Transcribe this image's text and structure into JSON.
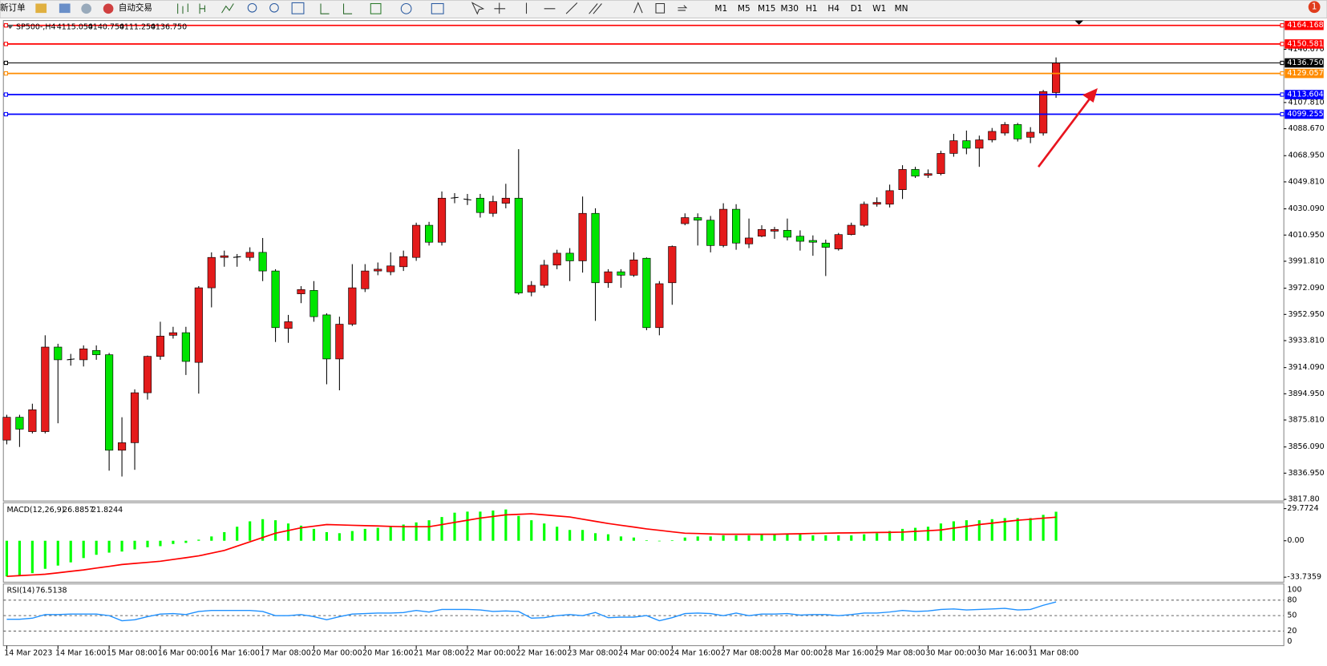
{
  "toolbar": {
    "new_order": "新订单",
    "auto_trading": "自动交易",
    "timeframes": [
      "M1",
      "M5",
      "M15",
      "M30",
      "H1",
      "H4",
      "D1",
      "W1",
      "MN"
    ],
    "notifications": 1
  },
  "chart": {
    "symbol": "SP500-,H4",
    "header_values": [
      {
        "value": 4115.05,
        "label": "4115.050"
      },
      {
        "value": 4140.75,
        "label": "4140.750"
      },
      {
        "value": 4111.25,
        "label": "4111.250"
      },
      {
        "value": 4136.75,
        "label": "4136.750"
      }
    ],
    "ylim": [
      3816.6,
      4167.1
    ],
    "yticks": [
      {
        "value": 4146.67,
        "label": "4146.670"
      },
      {
        "value": 4107.81,
        "label": "4107.810"
      },
      {
        "value": 4088.67,
        "label": "4088.670"
      },
      {
        "value": 4068.95,
        "label": "4068.950"
      },
      {
        "value": 4049.81,
        "label": "4049.810"
      },
      {
        "value": 4030.09,
        "label": "4030.090"
      },
      {
        "value": 4010.95,
        "label": "4010.950"
      },
      {
        "value": 3991.81,
        "label": "3991.810"
      },
      {
        "value": 3972.09,
        "label": "3972.090"
      },
      {
        "value": 3952.95,
        "label": "3952.950"
      },
      {
        "value": 3933.81,
        "label": "3933.810"
      },
      {
        "value": 3914.09,
        "label": "3914.090"
      },
      {
        "value": 3894.95,
        "label": "3894.950"
      },
      {
        "value": 3875.81,
        "label": "3875.810"
      },
      {
        "value": 3856.09,
        "label": "3856.090"
      },
      {
        "value": 3836.95,
        "label": "3836.950"
      },
      {
        "value": 3817.8,
        "label": "3817.80"
      }
    ],
    "levels": [
      {
        "value": 4164.168,
        "label": "4164.168",
        "color": "#ff0000"
      },
      {
        "value": 4150.581,
        "label": "4150.581",
        "color": "#ff0000"
      },
      {
        "value": 4136.75,
        "label": "4136.750",
        "color": "#000000"
      },
      {
        "value": 4129.057,
        "label": "4129.057",
        "color": "#ff8c00"
      },
      {
        "value": 4113.604,
        "label": "4113.604",
        "color": "#0000ff"
      },
      {
        "value": 4099.255,
        "label": "4099.255",
        "color": "#0000ff"
      }
    ],
    "up_color": "#e41b1b",
    "down_color": "#00e400",
    "candles": [
      [
        3861.1,
        3879.6,
        3858.0,
        3877.8
      ],
      [
        3877.8,
        3879.6,
        3856.1,
        3869.1
      ],
      [
        3867.3,
        3887.7,
        3866.0,
        3883.3
      ],
      [
        3867.3,
        3937.7,
        3866.0,
        3929.1
      ],
      [
        3929.1,
        3931.5,
        3873.4,
        3919.8
      ],
      [
        3919.8,
        3924.1,
        3915.5,
        3920.4
      ],
      [
        3919.8,
        3930.3,
        3914.9,
        3927.8
      ],
      [
        3926.6,
        3930.3,
        3919.8,
        3923.5
      ],
      [
        3923.5,
        3924.8,
        3838.8,
        3853.7
      ],
      [
        3853.7,
        3877.8,
        3834.5,
        3859.2
      ],
      [
        3859.2,
        3898.2,
        3839.4,
        3895.7
      ],
      [
        3895.7,
        3922.9,
        3890.7,
        3922.3
      ],
      [
        3922.3,
        3947.6,
        3919.8,
        3937.1
      ],
      [
        3937.7,
        3943.9,
        3935.3,
        3939.6
      ],
      [
        3939.6,
        3943.9,
        3908.7,
        3918.6
      ],
      [
        3917.9,
        3973.6,
        3895.1,
        3972.4
      ],
      [
        3972.4,
        3998.3,
        3958.1,
        3994.6
      ],
      [
        3994.6,
        3999.6,
        3987.8,
        3995.8
      ],
      [
        3994.6,
        3997.1,
        3987.8,
        3995.2
      ],
      [
        3994.6,
        4002.0,
        3992.1,
        3998.3
      ],
      [
        3998.3,
        4008.8,
        3977.3,
        3984.7
      ],
      [
        3984.7,
        3986.0,
        3932.8,
        3943.3
      ],
      [
        3942.7,
        3952.6,
        3932.2,
        3947.6
      ],
      [
        3968.0,
        3973.6,
        3961.2,
        3971.1
      ],
      [
        3970.5,
        3977.3,
        3947.6,
        3951.3
      ],
      [
        3952.6,
        3953.8,
        3901.9,
        3920.4
      ],
      [
        3920.4,
        3951.3,
        3897.5,
        3945.8
      ],
      [
        3945.8,
        3989.7,
        3944.5,
        3972.4
      ],
      [
        3971.7,
        3989.7,
        3969.3,
        3984.7
      ],
      [
        3984.7,
        3990.9,
        3981.6,
        3986.0
      ],
      [
        3984.1,
        3998.3,
        3981.6,
        3988.4
      ],
      [
        3987.8,
        3999.6,
        3984.7,
        3995.2
      ],
      [
        3994.6,
        4020.0,
        3992.1,
        4018.1
      ],
      [
        4018.1,
        4020.6,
        4003.3,
        4005.7
      ],
      [
        4005.7,
        4042.8,
        4003.3,
        4037.9
      ],
      [
        4037.9,
        4041.6,
        4034.2,
        4038.5
      ],
      [
        4037.3,
        4041.0,
        4032.9,
        4036.6
      ],
      [
        4037.9,
        4041.0,
        4023.7,
        4027.4
      ],
      [
        4026.8,
        4039.7,
        4024.3,
        4035.4
      ],
      [
        4034.2,
        4048.4,
        4030.5,
        4037.9
      ],
      [
        4037.9,
        4073.7,
        3967.4,
        3968.6
      ],
      [
        3969.3,
        3977.3,
        3966.2,
        3974.2
      ],
      [
        3974.2,
        3992.8,
        3972.4,
        3989.0
      ],
      [
        3989.0,
        4000.2,
        3986.0,
        3997.7
      ],
      [
        3997.7,
        4001.4,
        3977.3,
        3992.1
      ],
      [
        3992.1,
        4039.1,
        3983.5,
        4026.8
      ],
      [
        4026.8,
        4030.5,
        3948.2,
        3976.1
      ],
      [
        3976.1,
        3986.0,
        3972.4,
        3984.1
      ],
      [
        3984.1,
        3986.0,
        3972.4,
        3981.6
      ],
      [
        3981.6,
        3998.3,
        3980.4,
        3992.8
      ],
      [
        3994.0,
        3994.6,
        3941.4,
        3943.3
      ],
      [
        3943.3,
        3977.3,
        3937.7,
        3975.4
      ],
      [
        3976.1,
        4003.3,
        3960.0,
        4002.6
      ],
      [
        4019.3,
        4026.8,
        4018.1,
        4023.7
      ],
      [
        4023.7,
        4026.8,
        4003.3,
        4021.8
      ],
      [
        4021.8,
        4024.9,
        3998.3,
        4003.3
      ],
      [
        4003.3,
        4034.2,
        4002.0,
        4029.8
      ],
      [
        4029.8,
        4033.5,
        4000.2,
        4005.1
      ],
      [
        4004.5,
        4023.0,
        4001.4,
        4008.8
      ],
      [
        4010.1,
        4018.1,
        4009.4,
        4015.0
      ],
      [
        4013.8,
        4016.9,
        4008.2,
        4015.0
      ],
      [
        4014.4,
        4023.0,
        4007.0,
        4009.4
      ],
      [
        4010.1,
        4014.4,
        3999.6,
        4006.4
      ],
      [
        4007.0,
        4010.7,
        3995.8,
        4005.7
      ],
      [
        4005.1,
        4007.6,
        3981.0,
        4002.0
      ],
      [
        4000.8,
        4012.5,
        3999.6,
        4011.3
      ],
      [
        4011.3,
        4020.0,
        4010.7,
        4018.1
      ],
      [
        4018.1,
        4035.4,
        4016.9,
        4033.5
      ],
      [
        4033.5,
        4038.5,
        4031.7,
        4034.8
      ],
      [
        4033.5,
        4047.8,
        4031.1,
        4043.4
      ],
      [
        4044.1,
        4062.0,
        4037.3,
        4058.9
      ],
      [
        4058.9,
        4060.8,
        4052.7,
        4054.0
      ],
      [
        4054.6,
        4058.9,
        4052.7,
        4055.8
      ],
      [
        4055.8,
        4072.5,
        4054.6,
        4070.6
      ],
      [
        4070.6,
        4084.9,
        4068.2,
        4079.9
      ],
      [
        4079.9,
        4087.3,
        4070.0,
        4074.4
      ],
      [
        4074.4,
        4083.6,
        4060.8,
        4080.5
      ],
      [
        4080.5,
        4089.2,
        4078.7,
        4086.7
      ],
      [
        4085.5,
        4093.5,
        4083.6,
        4091.7
      ],
      [
        4091.7,
        4092.9,
        4079.3,
        4081.2
      ],
      [
        4082.4,
        4089.8,
        4078.1,
        4086.1
      ],
      [
        4085.5,
        4117.0,
        4083.6,
        4115.8
      ],
      [
        4115.05,
        4140.75,
        4111.25,
        4136.75
      ]
    ],
    "x_labels": [
      "14 Mar 2023",
      "14 Mar 16:00",
      "15 Mar 08:00",
      "16 Mar 00:00",
      "16 Mar 16:00",
      "17 Mar 08:00",
      "20 Mar 00:00",
      "20 Mar 16:00",
      "21 Mar 08:00",
      "22 Mar 00:00",
      "22 Mar 16:00",
      "23 Mar 08:00",
      "24 Mar 00:00",
      "24 Mar 16:00",
      "27 Mar 08:00",
      "28 Mar 00:00",
      "28 Mar 16:00",
      "29 Mar 08:00",
      "30 Mar 00:00",
      "30 Mar 16:00",
      "31 Mar 08:00"
    ]
  },
  "macd": {
    "name": "MACD(12,26,9)",
    "main": 26.8857,
    "signal_value": 21.8244,
    "ylim": [
      -38.39,
      34.47
    ],
    "yticks": [
      29.7724,
      {
        "value": 0,
        "label": "0.00"
      },
      -33.7359
    ],
    "histogram_color": "#00ff00",
    "signal_color": "#ff0000",
    "histogram": [
      -33,
      -32,
      -30,
      -26,
      -23,
      -20,
      -16,
      -13,
      -11,
      -10,
      -8,
      -6,
      -5,
      -3,
      -2,
      1,
      4,
      8,
      13,
      18,
      20,
      19,
      16,
      14,
      11,
      8,
      7,
      9,
      11,
      12,
      13,
      15,
      17,
      19,
      22,
      26,
      27,
      27,
      28,
      29,
      23,
      19,
      16,
      13,
      10,
      10,
      7,
      6,
      4,
      3,
      0.5,
      -0.5,
      0.5,
      3,
      4,
      4,
      5,
      5,
      5,
      6,
      6,
      6,
      6,
      5,
      5,
      5,
      5,
      6,
      7,
      9,
      11,
      12,
      13,
      16,
      18,
      19,
      19,
      20,
      21,
      21,
      21,
      24,
      26.8857
    ],
    "signal": [
      -33,
      -32.3,
      -31.7,
      -31,
      -29.7,
      -28.3,
      -27,
      -25.3,
      -23.7,
      -22,
      -21,
      -20,
      -19,
      -17.3,
      -15.7,
      -14,
      -11.5,
      -9,
      -5,
      -1,
      3,
      7,
      9.5,
      12,
      13.5,
      15,
      14.7,
      14.3,
      14,
      13.7,
      13.3,
      13,
      13,
      13,
      15,
      17,
      19,
      21,
      22.5,
      24,
      24.5,
      25,
      24,
      23,
      22,
      20,
      18,
      16,
      14.3,
      12.7,
      11,
      9.7,
      8.3,
      7,
      6.7,
      6.3,
      6,
      6,
      6,
      6,
      6,
      6.3,
      6.5,
      6.8,
      7,
      7.2,
      7.3,
      7.5,
      7.7,
      7.8,
      8,
      8.7,
      9.3,
      10,
      11.7,
      13.3,
      15,
      16.3,
      17.7,
      19,
      19.9,
      20.9,
      21.8244
    ]
  },
  "rsi": {
    "name": "RSI(14)",
    "value": 76.5138,
    "ylim": [
      -8.2,
      109.8
    ],
    "yticks": [
      100,
      80,
      50,
      20,
      0
    ],
    "color": "#1e90ff",
    "values": [
      43,
      43,
      45,
      52,
      52,
      53,
      53,
      53,
      50,
      40,
      42,
      48,
      53,
      54,
      52,
      58,
      60,
      60,
      60,
      60,
      58,
      50,
      50,
      52,
      48,
      42,
      48,
      53,
      54,
      55,
      55,
      56,
      60,
      57,
      62,
      62,
      62,
      61,
      58,
      59,
      58,
      45,
      46,
      50,
      52,
      50,
      56,
      46,
      47,
      47,
      50,
      40,
      46,
      54,
      55,
      54,
      50,
      55,
      50,
      53,
      53,
      54,
      51,
      52,
      52,
      50,
      52,
      55,
      55,
      57,
      60,
      58,
      59,
      62,
      63,
      61,
      62,
      63,
      64,
      61,
      62,
      70,
      76.5138
    ]
  }
}
